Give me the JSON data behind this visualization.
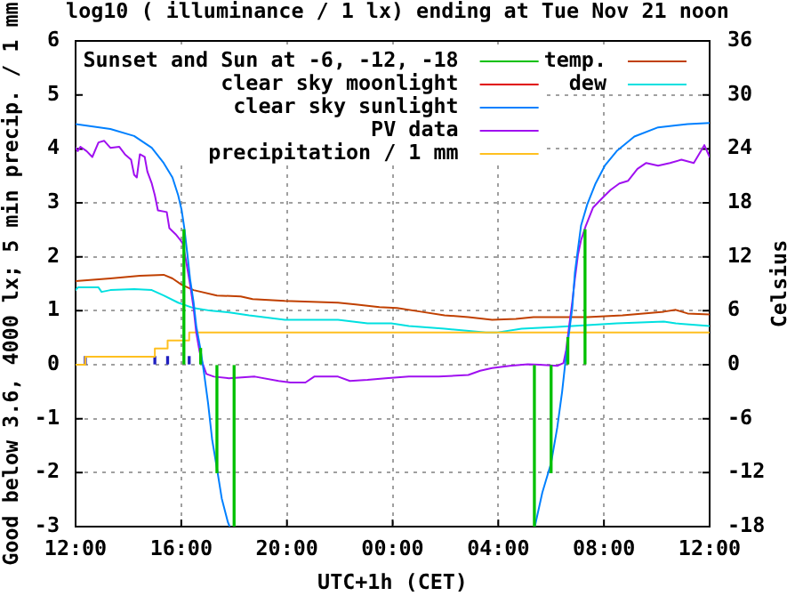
{
  "chart_data": {
    "type": "line",
    "title": "log10 ( illuminance / 1 lx) ending at Tue Nov 21 noon",
    "xlabel": "UTC+1h (CET)",
    "ylabel": "Good below 3.6, 4000 lx; 5 min precip. / 1 mm",
    "y2label": "Celsius",
    "xlim": [
      "--11-20T12:00",
      "--11-21T12:00"
    ],
    "xticks": [
      {
        "value": "--11-20T12:00",
        "label": "12:00"
      },
      {
        "value": "--11-20T16:00",
        "label": "16:00"
      },
      {
        "value": "--11-20T20:00",
        "label": "20:00"
      },
      {
        "value": "--11-21T00:00",
        "label": "00:00"
      },
      {
        "value": "--11-21T04:00",
        "label": "04:00"
      },
      {
        "value": "--11-21T08:00",
        "label": "08:00"
      },
      {
        "value": "--11-21T12:00",
        "label": "12:00"
      }
    ],
    "ylim": [
      -3,
      6
    ],
    "yticks": [
      -3,
      -2,
      -1,
      0,
      1,
      2,
      3,
      4,
      5,
      6
    ],
    "y2lim": [
      -18,
      36
    ],
    "y2ticks": [
      -18,
      -12,
      -6,
      0,
      6,
      12,
      18,
      24,
      30,
      36
    ],
    "grid": true,
    "legend": "top right",
    "series": [
      {
        "name": "Sunset and Sun at -6, -12, -18",
        "type": "bar",
        "color": "#00c000",
        "x": [
          "--11-20T16:06",
          "--11-20T16:44",
          "--11-20T17:21",
          "--11-20T18:00",
          "--11-21T05:22",
          "--11-21T06:00",
          "--11-21T06:38",
          "--11-21T07:17"
        ],
        "values": [
          2.5,
          0.3,
          -2.0,
          -3.0,
          -3.0,
          -2.0,
          0.5,
          2.5
        ]
      },
      {
        "name": "clear sky moonlight",
        "color": "#e00000"
      },
      {
        "name": "clear sky sunlight",
        "color": "#0080ff",
        "x": [
          "--11-20T12:00",
          "--11-20T13:19",
          "--11-20T14:13",
          "--11-20T14:53",
          "--11-20T15:20",
          "--11-20T15:40",
          "--11-20T15:53",
          "--11-20T16:01",
          "--11-20T16:07",
          "--11-20T16:14",
          "--11-20T16:20",
          "--11-20T16:28",
          "--11-20T16:34",
          "--11-20T16:44",
          "--11-20T16:52",
          "--11-20T17:01",
          "--11-20T17:10",
          "--11-20T17:21",
          "--11-20T17:32",
          "--11-20T17:46",
          "--11-20T17:50",
          "--11-21T00:00",
          "--11-21T05:23",
          "--11-21T05:40",
          "--11-21T06:00",
          "--11-21T06:14",
          "--11-21T06:25",
          "--11-21T06:34",
          "--11-21T06:48",
          "--11-21T06:54",
          "--11-21T07:01",
          "--11-21T07:08",
          "--11-21T07:22",
          "--11-21T07:41",
          "--11-21T08:02",
          "--11-21T08:29",
          "--11-21T09:09",
          "--11-21T10:03",
          "--11-21T11:10",
          "--11-21T12:00"
        ],
        "values": [
          4.46,
          4.37,
          4.24,
          4.02,
          3.74,
          3.47,
          3.14,
          2.86,
          2.53,
          2.04,
          1.59,
          1.16,
          0.72,
          0.27,
          -0.17,
          -0.72,
          -1.38,
          -1.92,
          -2.48,
          -2.92,
          -3.0,
          null,
          -3.0,
          -2.37,
          -1.82,
          -1.16,
          -0.5,
          0.17,
          1.05,
          1.71,
          2.15,
          2.58,
          2.97,
          3.36,
          3.69,
          3.96,
          4.23,
          4.4,
          4.46,
          4.48
        ]
      },
      {
        "name": "PV data",
        "color": "#a010f0",
        "x": [
          "--11-20T12:00",
          "--11-20T12:05",
          "--11-20T12:11",
          "--11-20T12:25",
          "--11-20T12:38",
          "--11-20T12:52",
          "--11-20T13:05",
          "--11-20T13:19",
          "--11-20T13:39",
          "--11-20T13:52",
          "--11-20T14:06",
          "--11-20T14:13",
          "--11-20T14:19",
          "--11-20T14:26",
          "--11-20T14:37",
          "--11-20T14:43",
          "--11-20T14:53",
          "--11-20T15:00",
          "--11-20T15:07",
          "--11-20T15:27",
          "--11-20T15:33",
          "--11-20T15:47",
          "--11-20T15:58",
          "--11-20T16:03",
          "--11-20T16:11",
          "--11-20T16:20",
          "--11-20T16:28",
          "--11-20T16:34",
          "--11-20T16:41",
          "--11-20T16:47",
          "--11-20T16:57",
          "--11-20T17:14",
          "--11-20T17:48",
          "--11-20T18:47",
          "--11-20T19:41",
          "--11-20T20:08",
          "--11-20T20:42",
          "--11-20T21:02",
          "--11-20T21:56",
          "--11-20T22:23",
          "--11-20T23:03",
          "--11-20T23:44",
          "--11-21T00:37",
          "--11-21T01:45",
          "--11-21T02:52",
          "--11-21T03:19",
          "--11-21T03:46",
          "--11-21T04:26",
          "--11-21T05:07",
          "--11-21T05:34",
          "--11-21T06:14",
          "--11-21T06:28",
          "--11-21T06:34",
          "--11-21T06:41",
          "--11-21T06:48",
          "--11-21T06:54",
          "--11-21T07:01",
          "--11-21T07:08",
          "--11-21T07:19",
          "--11-21T07:35",
          "--11-21T07:55",
          "--11-21T08:15",
          "--11-21T08:35",
          "--11-21T08:55",
          "--11-21T09:16",
          "--11-21T09:36",
          "--11-21T10:03",
          "--11-21T10:30",
          "--11-21T10:56",
          "--11-21T11:24",
          "--11-21T11:48",
          "--11-21T12:00"
        ],
        "values": [
          4.02,
          3.96,
          4.04,
          3.96,
          3.85,
          4.12,
          4.15,
          4.02,
          4.04,
          3.9,
          3.8,
          3.52,
          3.47,
          3.9,
          3.85,
          3.58,
          3.36,
          3.14,
          2.86,
          2.83,
          2.53,
          2.42,
          2.31,
          2.25,
          1.92,
          1.49,
          1.05,
          0.6,
          0.27,
          0.06,
          -0.17,
          -0.22,
          -0.25,
          -0.22,
          -0.3,
          -0.33,
          -0.33,
          -0.22,
          -0.22,
          -0.3,
          -0.28,
          -0.25,
          -0.22,
          -0.22,
          -0.19,
          -0.11,
          -0.06,
          -0.02,
          0.01,
          0.0,
          -0.02,
          0.03,
          0.27,
          0.72,
          1.16,
          1.59,
          2.04,
          2.31,
          2.58,
          2.91,
          3.08,
          3.24,
          3.36,
          3.41,
          3.63,
          3.74,
          3.69,
          3.74,
          3.8,
          3.74,
          4.07,
          3.85
        ]
      },
      {
        "name": "precipitation / 1 mm",
        "type": "step",
        "color": "#ffc020",
        "x": [
          "--11-20T12:00",
          "--11-20T12:22",
          "--11-20T15:00",
          "--11-20T15:29",
          "--11-20T16:18",
          "--11-21T12:00"
        ],
        "values": [
          0,
          0.15,
          0.3,
          0.45,
          0.6,
          0.6
        ]
      },
      {
        "name": "temp.",
        "color": "#c04000",
        "axis": "y2",
        "x": [
          "--11-20T12:00",
          "--11-20T13:19",
          "--11-20T14:26",
          "--11-20T15:20",
          "--11-20T15:40",
          "--11-20T16:01",
          "--11-20T16:28",
          "--11-20T17:21",
          "--11-20T18:15",
          "--11-20T18:42",
          "--11-20T19:55",
          "--11-20T21:56",
          "--11-20T22:36",
          "--11-20T23:30",
          "--11-21T00:10",
          "--11-21T01:04",
          "--11-21T01:58",
          "--11-21T02:52",
          "--11-21T03:46",
          "--11-21T04:40",
          "--11-21T05:20",
          "--11-21T07:22",
          "--11-21T08:42",
          "--11-21T10:16",
          "--11-21T10:43",
          "--11-21T11:10",
          "--11-21T12:00"
        ],
        "values": [
          9.3,
          9.6,
          9.9,
          10.0,
          9.6,
          8.9,
          8.3,
          7.7,
          7.6,
          7.3,
          7.1,
          6.9,
          6.7,
          6.4,
          6.3,
          5.9,
          5.5,
          5.3,
          5.0,
          5.1,
          5.3,
          5.3,
          5.5,
          5.9,
          6.1,
          5.7,
          5.6
        ]
      },
      {
        "name": "dew",
        "color": "#00e0e0",
        "axis": "y2",
        "x": [
          "--11-20T12:00",
          "--11-20T12:05",
          "--11-20T12:52",
          "--11-20T12:59",
          "--11-20T13:19",
          "--11-20T14:13",
          "--11-20T14:53",
          "--11-20T15:20",
          "--11-20T15:53",
          "--11-20T16:28",
          "--11-20T17:08",
          "--11-20T17:53",
          "--11-20T18:34",
          "--11-20T19:55",
          "--11-20T21:56",
          "--11-20T23:03",
          "--11-20T23:57",
          "--11-21T00:37",
          "--11-21T01:58",
          "--11-21T03:32",
          "--11-21T03:59",
          "--11-21T04:53",
          "--11-21T06:14",
          "--11-21T07:22",
          "--11-21T08:29",
          "--11-21T10:16",
          "--11-21T10:43",
          "--11-21T12:00"
        ],
        "values": [
          8.3,
          8.6,
          8.6,
          8.1,
          8.3,
          8.4,
          8.3,
          7.7,
          6.9,
          6.3,
          6.0,
          5.8,
          5.5,
          5.0,
          5.0,
          4.6,
          4.6,
          4.3,
          4.0,
          3.6,
          3.6,
          4.0,
          4.2,
          4.4,
          4.6,
          4.8,
          4.6,
          4.3
        ]
      },
      {
        "type": "bar",
        "color": "#2020c0",
        "x": [
          "--11-20T12:22",
          "--11-20T15:00",
          "--11-20T15:29",
          "--11-20T16:18"
        ],
        "values": [
          0.15,
          0.15,
          0.15,
          0.15
        ]
      }
    ]
  }
}
